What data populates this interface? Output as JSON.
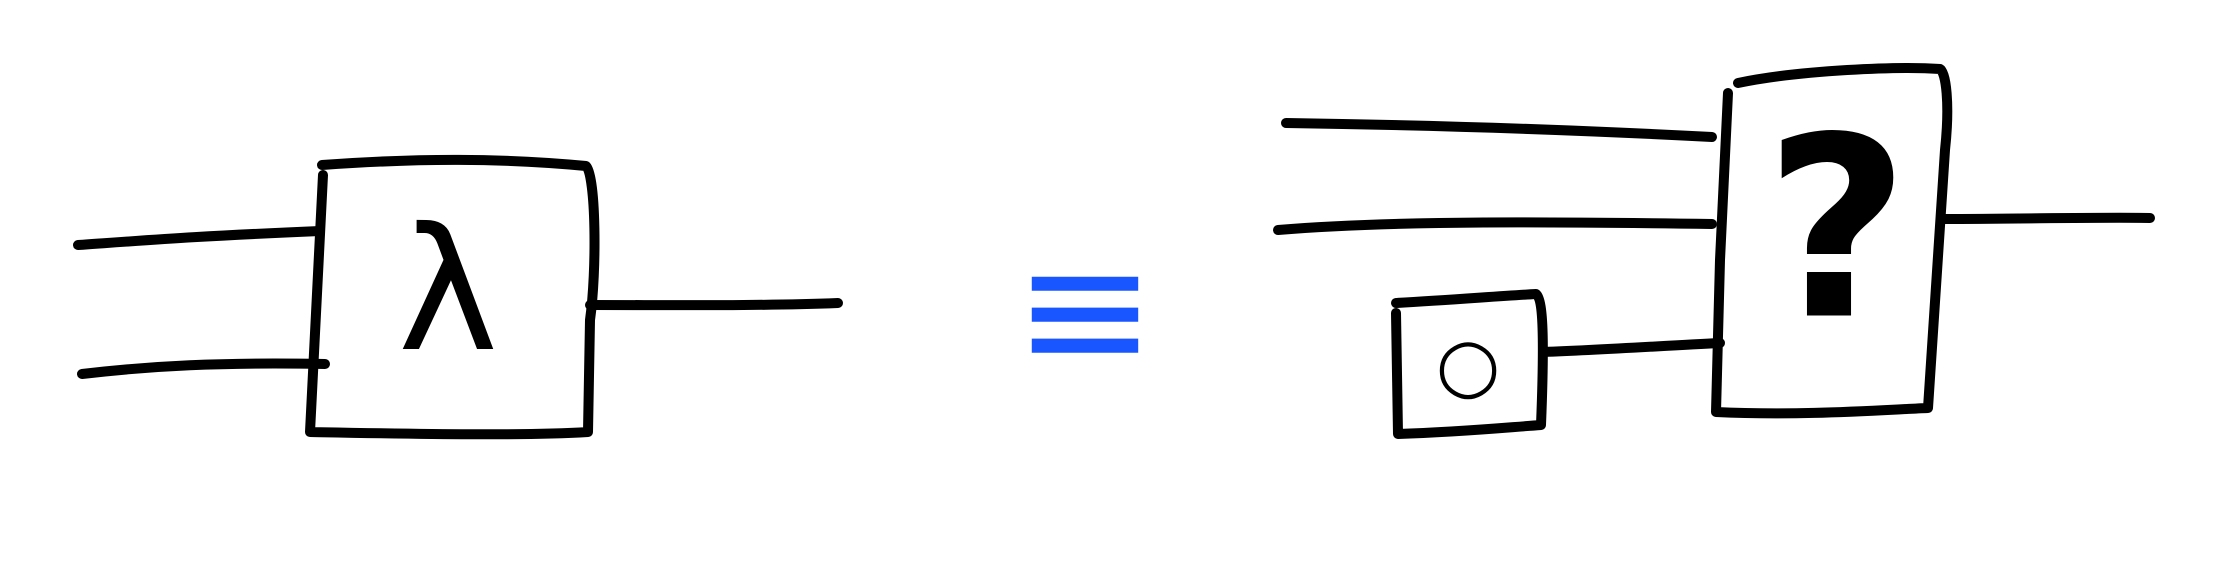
{
  "diagram": {
    "left": {
      "symbol": "λ"
    },
    "equals": {
      "symbol": "≡"
    },
    "right": {
      "mystery_symbol": "?",
      "inner_symbol": "○"
    }
  },
  "colors": {
    "ink": "#000000",
    "equals": "#1a56ff",
    "background": "#ffffff"
  }
}
